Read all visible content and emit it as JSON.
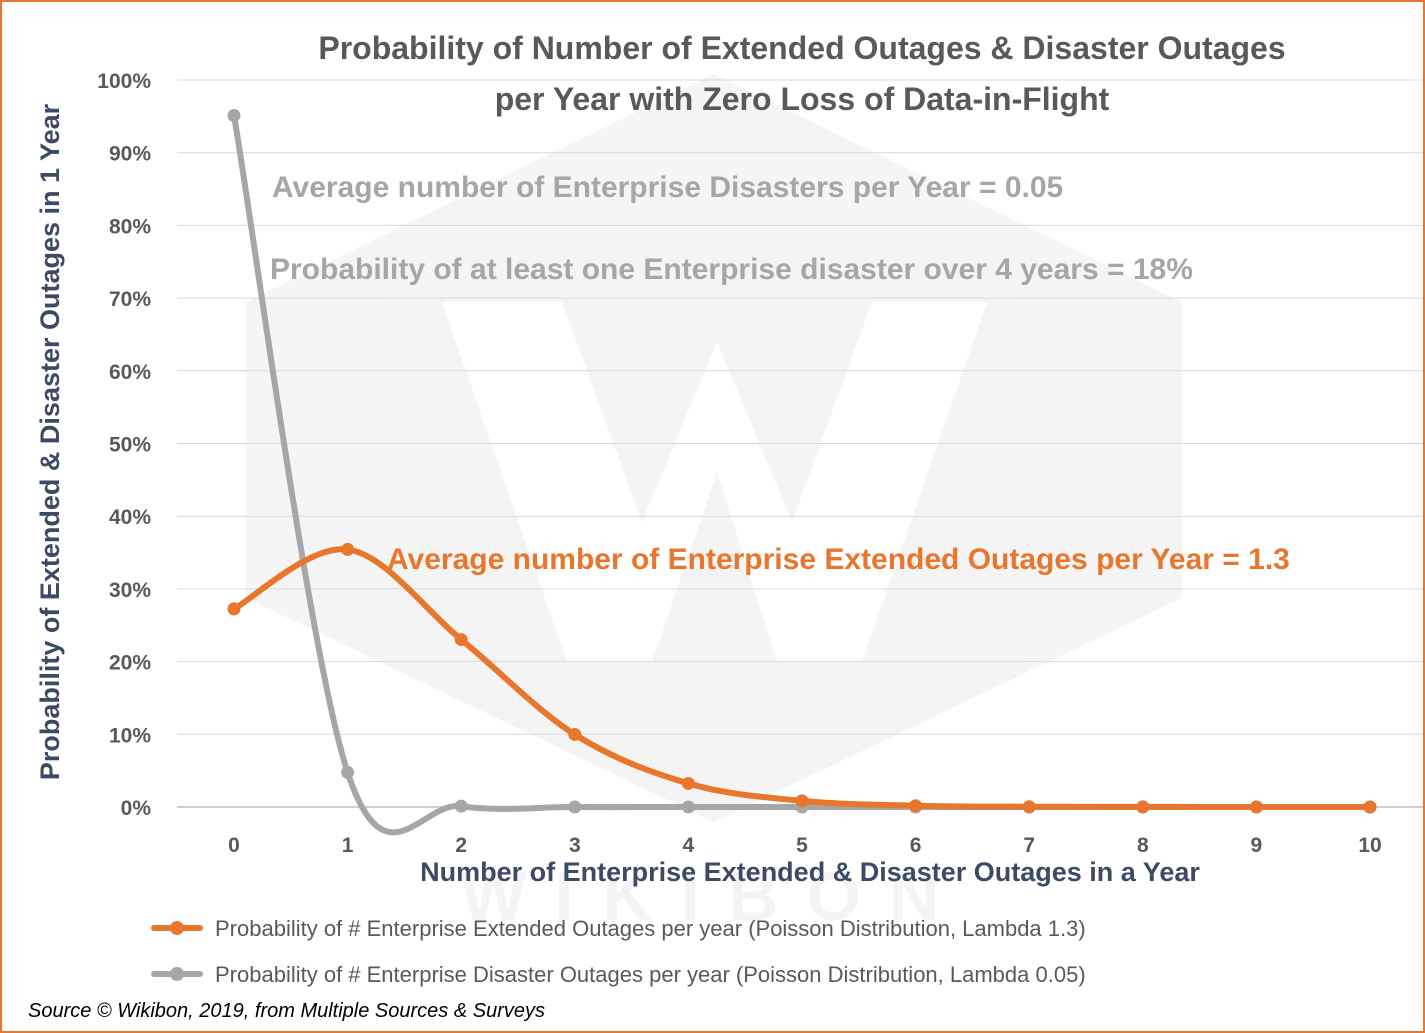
{
  "chart_data": {
    "type": "line",
    "title": "Probability of Number of Extended Outages & Disaster Outages per Year with Zero Loss of Data-in-Flight",
    "title_lines": [
      "Probability of Number of Extended Outages & Disaster Outages",
      "per Year with Zero Loss of Data-in-Flight"
    ],
    "xlabel": "Number of Enterprise Extended & Disaster Outages in a Year",
    "ylabel": "Probability of Extended & Disaster Outages in 1 Year",
    "x": [
      0,
      1,
      2,
      3,
      4,
      5,
      6,
      7,
      8,
      9,
      10
    ],
    "x_tick_labels": [
      "0",
      "1",
      "2",
      "3",
      "4",
      "5",
      "6",
      "7",
      "8",
      "9",
      "10"
    ],
    "y_tick_labels": [
      "0%",
      "10%",
      "20%",
      "30%",
      "40%",
      "50%",
      "60%",
      "70%",
      "80%",
      "90%",
      "100%"
    ],
    "ylim": [
      0,
      1
    ],
    "grid": "horizontal",
    "legend_position": "bottom",
    "series": [
      {
        "name": "Probability of # Enterprise Extended Outages per year (Poisson Distribution, Lambda 1.3)",
        "color": "#e8762c",
        "values": [
          0.2725,
          0.3543,
          0.2303,
          0.0998,
          0.0324,
          0.0084,
          0.0018,
          0.0003,
          0.0001,
          0.0,
          0.0
        ]
      },
      {
        "name": "Probability of # Enterprise Disaster Outages per year (Poisson Distribution, Lambda 0.05)",
        "color": "#a6a6a6",
        "values": [
          0.9512,
          0.0476,
          0.0012,
          0.0,
          0.0,
          0.0,
          0.0,
          0.0,
          0.0,
          0.0,
          0.0
        ]
      }
    ],
    "annotations": [
      {
        "text": "Average number of Enterprise Disasters per Year = 0.05",
        "color": "#a6a6a6"
      },
      {
        "text": "Probability of at least one Enterprise disaster over 4 years = 18%",
        "color": "#a6a6a6"
      },
      {
        "text": "Average number of Enterprise Extended Outages per Year = 1.3",
        "color": "#e8762c"
      }
    ],
    "source": "Source © Wikibon, 2019, from Multiple Sources & Surveys",
    "watermark": "WIKIBON"
  },
  "colors": {
    "frame": "#e8762c",
    "grid": "#d9d9d9",
    "axis_title": "#3c4a66"
  }
}
